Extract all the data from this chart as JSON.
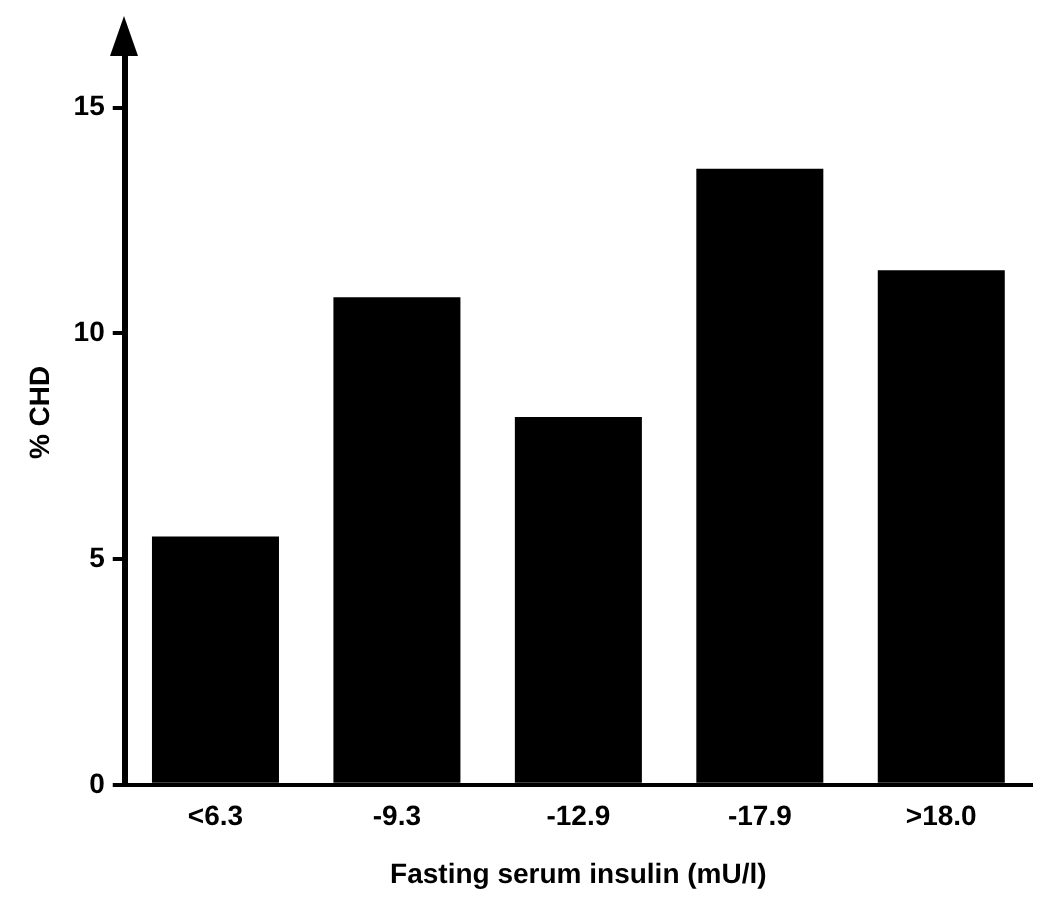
{
  "chart_data": {
    "type": "bar",
    "xlabel": "Fasting serum insulin (mU/l)",
    "ylabel": "% CHD",
    "categories": [
      "<6.3",
      "-9.3",
      "-12.9",
      "-17.9",
      ">18.0"
    ],
    "values": [
      5.5,
      10.8,
      8.15,
      13.65,
      11.4
    ],
    "color": "#000000",
    "ylim": [
      0,
      16.5
    ],
    "yticks": [
      0,
      5,
      10,
      15
    ],
    "grid": false,
    "legend": false
  }
}
